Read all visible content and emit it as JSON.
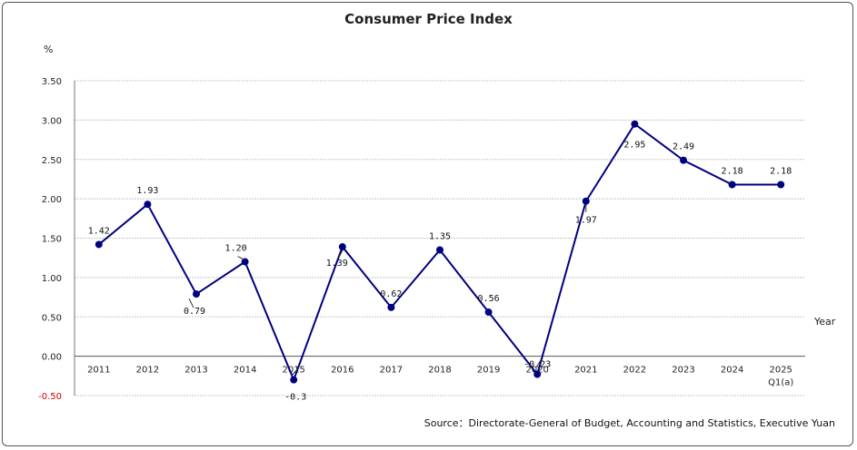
{
  "chart_data": {
    "type": "line",
    "title": "Consumer Price Index",
    "ylabel": "%",
    "xlabel": "Year",
    "source": "Source：Directorate-General of Budget, Accounting and Statistics, Executive Yuan",
    "ylim": [
      -0.5,
      3.5
    ],
    "yticks": [
      -0.5,
      0.0,
      0.5,
      1.0,
      1.5,
      2.0,
      2.5,
      3.0,
      3.5
    ],
    "ytick_labels": [
      "-0.50",
      "0.00",
      "0.50",
      "1.00",
      "1.50",
      "2.00",
      "2.50",
      "3.00",
      "3.50"
    ],
    "grid": true,
    "categories": [
      "2011",
      "2012",
      "2013",
      "2014",
      "2015",
      "2016",
      "2017",
      "2018",
      "2019",
      "2020",
      "2021",
      "2022",
      "2023",
      "2024",
      "2025"
    ],
    "category_sublabels": [
      "",
      "",
      "",
      "",
      "",
      "",
      "",
      "",
      "",
      "",
      "",
      "",
      "",
      "",
      "Q1(a)"
    ],
    "series": [
      {
        "values": [
          1.42,
          1.93,
          0.79,
          1.2,
          -0.3,
          1.39,
          0.62,
          1.35,
          0.56,
          -0.23,
          1.97,
          2.95,
          2.49,
          2.18,
          2.18
        ],
        "labels": [
          "1.42",
          "1.93",
          "0.79",
          "1.20",
          "-0.3",
          "1.39",
          "0.62",
          "1.35",
          "0.56",
          "-0.23",
          "1.97",
          "2.95",
          "2.49",
          "2.18",
          "2.18"
        ],
        "color": "#00007f"
      }
    ]
  }
}
